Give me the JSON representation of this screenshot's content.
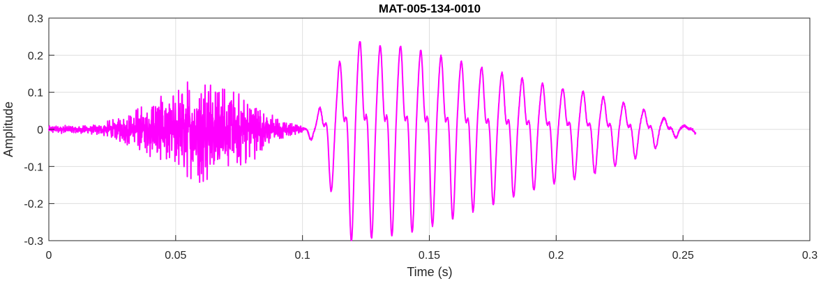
{
  "chart_data": {
    "type": "line",
    "title": "MAT-005-134-0010",
    "xlabel": "Time (s)",
    "ylabel": "Amplitude",
    "xlim": [
      0,
      0.3
    ],
    "ylim": [
      -0.3,
      0.3
    ],
    "x_ticks": [
      0,
      0.05,
      0.1,
      0.15,
      0.2,
      0.25,
      0.3
    ],
    "x_tick_labels": [
      "0",
      "0.05",
      "0.1",
      "0.15",
      "0.2",
      "0.25",
      "0.3"
    ],
    "y_ticks": [
      0.3,
      0.2,
      0.1,
      0,
      -0.1,
      -0.2,
      -0.3
    ],
    "y_tick_labels": [
      "0.3",
      "0.2",
      "0.1",
      "0",
      "-0.1",
      "-0.2",
      "-0.3"
    ],
    "grid": true,
    "series": [
      {
        "color": "#ff00ff",
        "x_start": 0,
        "x_end": 0.255,
        "segments": [
          {
            "x": [
              0,
              0.1
            ],
            "description": "fricative noise burst",
            "peak_time": 0.06,
            "max": 0.16,
            "min": -0.17
          },
          {
            "x": [
              0.105,
              0.255
            ],
            "description": "periodic voiced segment",
            "max": 0.26,
            "min": -0.28
          }
        ],
        "envelope": [
          [
            0.0,
            0.01
          ],
          [
            0.02,
            0.015
          ],
          [
            0.03,
            0.04
          ],
          [
            0.04,
            0.08
          ],
          [
            0.05,
            0.12
          ],
          [
            0.06,
            0.16
          ],
          [
            0.07,
            0.13
          ],
          [
            0.08,
            0.09
          ],
          [
            0.09,
            0.03
          ],
          [
            0.1,
            0.01
          ],
          [
            0.105,
            0.03
          ],
          [
            0.11,
            0.12
          ],
          [
            0.115,
            0.2
          ],
          [
            0.12,
            0.26
          ],
          [
            0.13,
            0.24
          ],
          [
            0.14,
            0.24
          ],
          [
            0.15,
            0.22
          ],
          [
            0.16,
            0.2
          ],
          [
            0.17,
            0.18
          ],
          [
            0.18,
            0.16
          ],
          [
            0.19,
            0.14
          ],
          [
            0.2,
            0.12
          ],
          [
            0.21,
            0.11
          ],
          [
            0.22,
            0.09
          ],
          [
            0.23,
            0.07
          ],
          [
            0.24,
            0.04
          ],
          [
            0.25,
            0.01
          ],
          [
            0.255,
            0.01
          ]
        ]
      }
    ]
  }
}
